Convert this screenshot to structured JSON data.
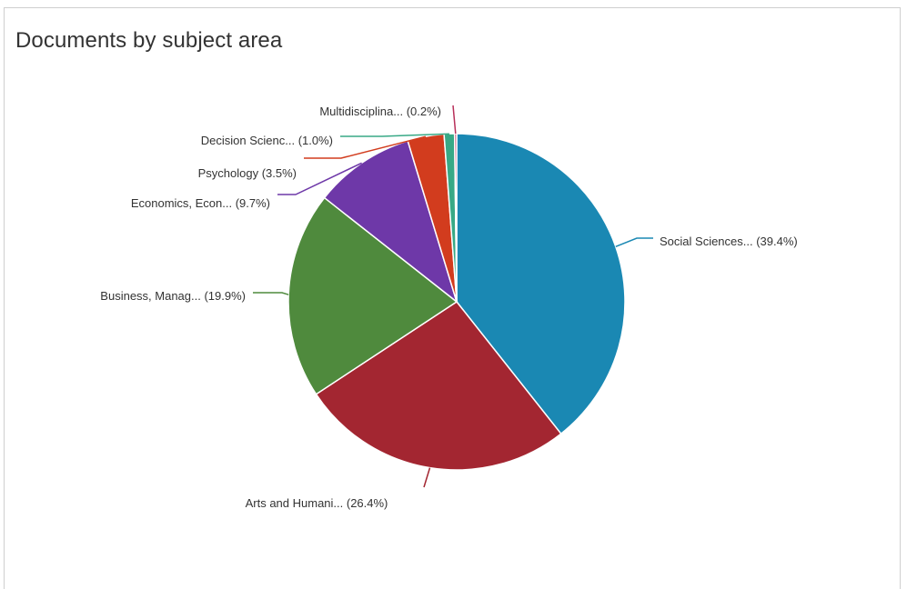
{
  "chart_data": {
    "type": "pie",
    "title": "Documents by subject area",
    "slices": [
      {
        "label": "Social Sciences...",
        "value": 39.4,
        "display": "(39.4%)",
        "color": "#1A88B3"
      },
      {
        "label": "Arts and Humani...",
        "value": 26.4,
        "display": "(26.4%)",
        "color": "#A32631"
      },
      {
        "label": "Business, Manag...",
        "value": 19.9,
        "display": "(19.9%)",
        "color": "#4F8A3D"
      },
      {
        "label": "Economics, Econ...",
        "value": 9.7,
        "display": "(9.7%)",
        "color": "#6E38A8"
      },
      {
        "label": "Psychology",
        "value": 3.5,
        "display": "(3.5%)",
        "color": "#D23C1E"
      },
      {
        "label": "Decision Scienc...",
        "value": 1.0,
        "display": "(1.0%)",
        "color": "#38A986"
      },
      {
        "label": "Multidisciplina...",
        "value": 0.2,
        "display": "(0.2%)",
        "color": "#B8305A"
      }
    ],
    "start_angle": "12 o'clock",
    "direction": "clockwise",
    "legend": "none (callout labels)"
  }
}
